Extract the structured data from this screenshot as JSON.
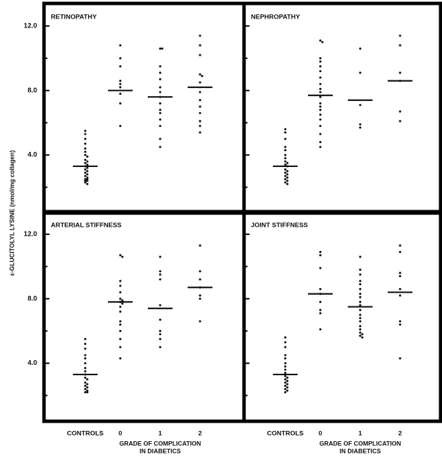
{
  "chart_data": [
    {
      "type": "strip",
      "title": "RETINOPATHY",
      "groups": [
        {
          "values": [
            5.5,
            5.3,
            5.0,
            4.7,
            4.4,
            4.2,
            4.0,
            3.9,
            3.7,
            3.6,
            3.5,
            3.4,
            3.3,
            3.2,
            3.1,
            3.0,
            2.9,
            2.8,
            2.7,
            2.6,
            2.5,
            2.5,
            2.4,
            2.4,
            2.3,
            2.2
          ],
          "mean": 3.3
        },
        {
          "values": [
            10.8,
            10.0,
            9.5,
            8.6,
            8.4,
            8.2,
            7.8,
            7.2,
            5.8
          ],
          "mean": 8.0
        },
        {
          "values": [
            10.6,
            10.6,
            9.5,
            9.1,
            8.7,
            8.2,
            7.9,
            7.6,
            7.2,
            6.8,
            6.6,
            6.2,
            5.8,
            5.0,
            4.5
          ],
          "mean": 7.6
        },
        {
          "values": [
            11.4,
            10.8,
            10.2,
            9.0,
            8.9,
            8.5,
            7.9,
            7.4,
            7.0,
            6.6,
            6.1,
            5.8,
            5.4
          ],
          "mean": 8.2
        }
      ]
    },
    {
      "type": "strip",
      "title": "NEPHROPATHY",
      "groups": [
        {
          "values": [
            5.6,
            5.4,
            5.0,
            4.5,
            4.3,
            4.0,
            3.8,
            3.6,
            3.5,
            3.4,
            3.3,
            3.1,
            3.0,
            2.9,
            2.8,
            2.7,
            2.6,
            2.5,
            2.4,
            2.3,
            2.2
          ],
          "mean": 3.3
        },
        {
          "values": [
            11.1,
            11.0,
            10.0,
            9.8,
            9.5,
            9.2,
            8.8,
            8.4,
            8.1,
            7.9,
            7.6,
            7.2,
            7.0,
            6.8,
            6.5,
            6.2,
            5.8,
            5.3,
            4.8,
            4.5
          ],
          "mean": 7.7
        },
        {
          "values": [
            10.6,
            9.1,
            7.1,
            5.9,
            5.7
          ],
          "mean": 7.4
        },
        {
          "values": [
            11.4,
            10.8,
            9.1,
            8.6,
            6.7,
            6.1
          ],
          "mean": 8.6
        }
      ]
    },
    {
      "type": "strip",
      "title": "ARTERIAL STIFFNESS",
      "groups": [
        {
          "values": [
            5.5,
            5.2,
            4.9,
            4.5,
            4.3,
            4.0,
            3.7,
            3.5,
            3.3,
            3.1,
            3.0,
            2.8,
            2.7,
            2.6,
            2.5,
            2.4,
            2.3,
            2.2,
            2.2
          ],
          "mean": 3.3
        },
        {
          "values": [
            10.7,
            10.6,
            9.1,
            8.8,
            8.4,
            8.0,
            7.9,
            7.8,
            7.7,
            7.5,
            7.2,
            6.6,
            6.4,
            6.0,
            5.5,
            5.0,
            4.3
          ],
          "mean": 7.8
        },
        {
          "values": [
            10.6,
            9.7,
            9.5,
            9.2,
            7.6,
            6.7,
            6.0,
            5.8,
            5.5,
            5.0
          ],
          "mean": 7.4
        },
        {
          "values": [
            11.3,
            9.7,
            9.2,
            8.7,
            8.2,
            8.0,
            6.6
          ],
          "mean": 8.7
        }
      ]
    },
    {
      "type": "strip",
      "title": "JOINT STIFFNESS",
      "groups": [
        {
          "values": [
            5.6,
            5.3,
            5.0,
            4.5,
            4.3,
            4.0,
            3.8,
            3.6,
            3.4,
            3.2,
            3.1,
            3.0,
            2.9,
            2.8,
            2.7,
            2.6,
            2.5,
            2.4,
            2.3,
            2.2
          ],
          "mean": 3.3
        },
        {
          "values": [
            10.9,
            10.7,
            9.9,
            8.6,
            8.3,
            7.8,
            7.3,
            7.1,
            6.1
          ],
          "mean": 8.3
        },
        {
          "values": [
            10.6,
            9.8,
            9.5,
            9.1,
            8.9,
            8.6,
            8.3,
            8.1,
            7.8,
            7.6,
            7.3,
            7.0,
            6.8,
            6.6,
            6.3,
            6.1,
            5.9,
            5.8,
            5.7,
            5.6
          ],
          "mean": 7.5
        },
        {
          "values": [
            11.3,
            10.9,
            9.6,
            9.4,
            8.6,
            8.2,
            6.6,
            6.4,
            4.3
          ],
          "mean": 8.4
        }
      ]
    }
  ],
  "y_axis": {
    "label": "ε-GLUCITOLYL LYSINE (nmol/mg collagen)",
    "ylim": [
      0.4,
      13.4
    ],
    "yticks": [
      {
        "value": 4,
        "label": "4.0"
      },
      {
        "value": 8,
        "label": "8.0"
      },
      {
        "value": 12,
        "label": "12.0"
      }
    ],
    "minor_ticks": [
      2,
      6,
      10
    ]
  },
  "x_axis": {
    "categories": [
      "CONTROLS",
      "0",
      "1",
      "2"
    ],
    "label_lines": [
      "GRADE OF COMPLICATION",
      "IN DIABETICS"
    ]
  }
}
